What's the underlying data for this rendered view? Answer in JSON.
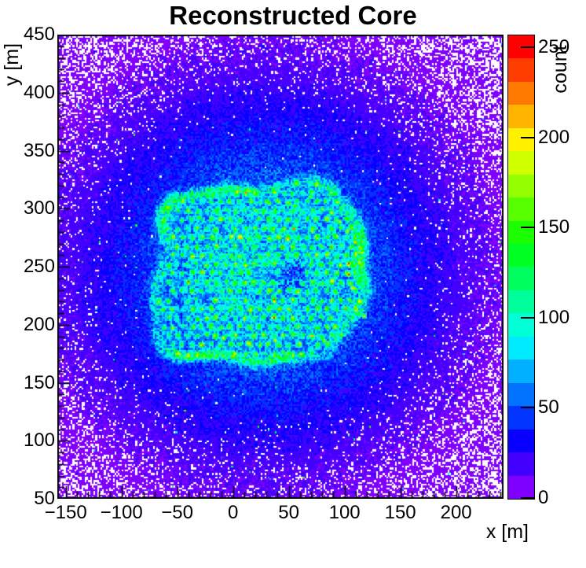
{
  "labels": {
    "title": "Reconstructed Core",
    "x": "x [m]",
    "y": "y [m]",
    "z": "count"
  },
  "chart_data": {
    "type": "heatmap",
    "subtype": "2d-histogram (ROOT COLZ style)",
    "title": "Reconstructed Core",
    "xlabel": "x [m]",
    "ylabel": "y [m]",
    "zlabel": "count",
    "xlim": [
      -157.5,
      242.5
    ],
    "ylim": [
      50,
      450
    ],
    "zlim": [
      0,
      257
    ],
    "grid": false,
    "legend_position": "right-colorbar",
    "x_ticks": [
      -150,
      -100,
      -50,
      0,
      50,
      100,
      150,
      200
    ],
    "x_tick_labels": [
      "−150",
      "−100",
      "−50",
      "0",
      "50",
      "100",
      "150",
      "200"
    ],
    "x_minor_step": 10,
    "y_ticks": [
      50,
      100,
      150,
      200,
      250,
      300,
      350,
      400,
      450
    ],
    "y_tick_labels": [
      "50",
      "100",
      "150",
      "200",
      "250",
      "300",
      "350",
      "400",
      "450"
    ],
    "y_minor_step": 10,
    "z_ticks": [
      0,
      50,
      100,
      150,
      200,
      250
    ],
    "z_tick_labels": [
      "0",
      "50",
      "100",
      "150",
      "200",
      "250"
    ],
    "n_contours": 20,
    "empty_bin_color": "#ffffff",
    "palette_bottom_to_top": [
      "#8000ff",
      "#4300ff",
      "#0700ff",
      "#0035ff",
      "#0072ff",
      "#00afff",
      "#00ebff",
      "#00ffd7",
      "#00ff9a",
      "#00ff5e",
      "#00ff22",
      "#1bff00",
      "#57ff00",
      "#93ff00",
      "#d0ff00",
      "#fff100",
      "#ffb500",
      "#ff7900",
      "#ff3c00",
      "#ff0000"
    ],
    "description": "Density map of reconstructed shower core positions: diffuse violet/blue halo of mis-reconstructed cores with empty white bins toward the pad corners, and a rounded-square detector-array footprint (x from about -68 m to 116 m, y from about 164 m to 324 m) outlined by a bright cyan rim, filled with a hexagonal lattice of high-count green/cyan spots at detector-unit positions; a dark low-count hole sits near (52, 242) m, hottest orange/red spots near the right edge of the array around (104, 245-252) m, and yellow spots along the bottom and upper-right edges of the array.",
    "render_model": {
      "bins": 256,
      "background": {
        "center_x": 30,
        "center_y": 247,
        "y_squash": 1.05,
        "amplitude": 68,
        "sigma": 140,
        "floor": 3.2
      },
      "empty_bin_prob_scale": 6.5,
      "footprint": {
        "center_x": 24,
        "center_y": 244,
        "half_x": 92,
        "half_y": 80,
        "power": 4,
        "interior_lift": 9
      },
      "rim": {
        "amplitude": 57,
        "rho_center": 0.95,
        "rho_width": 0.06
      },
      "hole": {
        "x": 52,
        "y": 242,
        "radius": 13,
        "depth": 44
      },
      "lattice": {
        "col_spacing": 8.6,
        "row_spacing": 7.7,
        "row_offset": 4.3,
        "jitter": 1.8,
        "dropout": 0.06,
        "peak_min": 52,
        "peak_spread": 68,
        "bright_fraction": 0.1,
        "bright_min": 115,
        "bright_spread": 55,
        "dot_sigma": 2.1,
        "rho_max": 0.93
      },
      "hot_dots": [
        {
          "x": 104,
          "y": 252,
          "v": 252
        },
        {
          "x": 104,
          "y": 243,
          "v": 246
        },
        {
          "x": 108,
          "y": 231,
          "v": 212
        },
        {
          "x": 116,
          "y": 262,
          "v": 205
        },
        {
          "x": 110,
          "y": 271,
          "v": 214
        },
        {
          "x": 103,
          "y": 280,
          "v": 208
        },
        {
          "x": 96,
          "y": 288,
          "v": 198
        },
        {
          "x": 89,
          "y": 296,
          "v": 190
        },
        {
          "x": 30,
          "y": 306,
          "v": 178
        },
        {
          "x": 56,
          "y": 302,
          "v": 172
        },
        {
          "x": -8,
          "y": 188,
          "v": 192
        },
        {
          "x": 14,
          "y": 184,
          "v": 200
        },
        {
          "x": 38,
          "y": 186,
          "v": 208
        },
        {
          "x": 60,
          "y": 183,
          "v": 204
        },
        {
          "x": 82,
          "y": 186,
          "v": 196
        },
        {
          "x": 98,
          "y": 191,
          "v": 186
        },
        {
          "x": 50,
          "y": 175,
          "v": 188
        },
        {
          "x": 118,
          "y": 207,
          "v": 198
        },
        {
          "x": -30,
          "y": 292,
          "v": 170
        },
        {
          "x": 70,
          "y": 310,
          "v": 175
        }
      ]
    }
  }
}
